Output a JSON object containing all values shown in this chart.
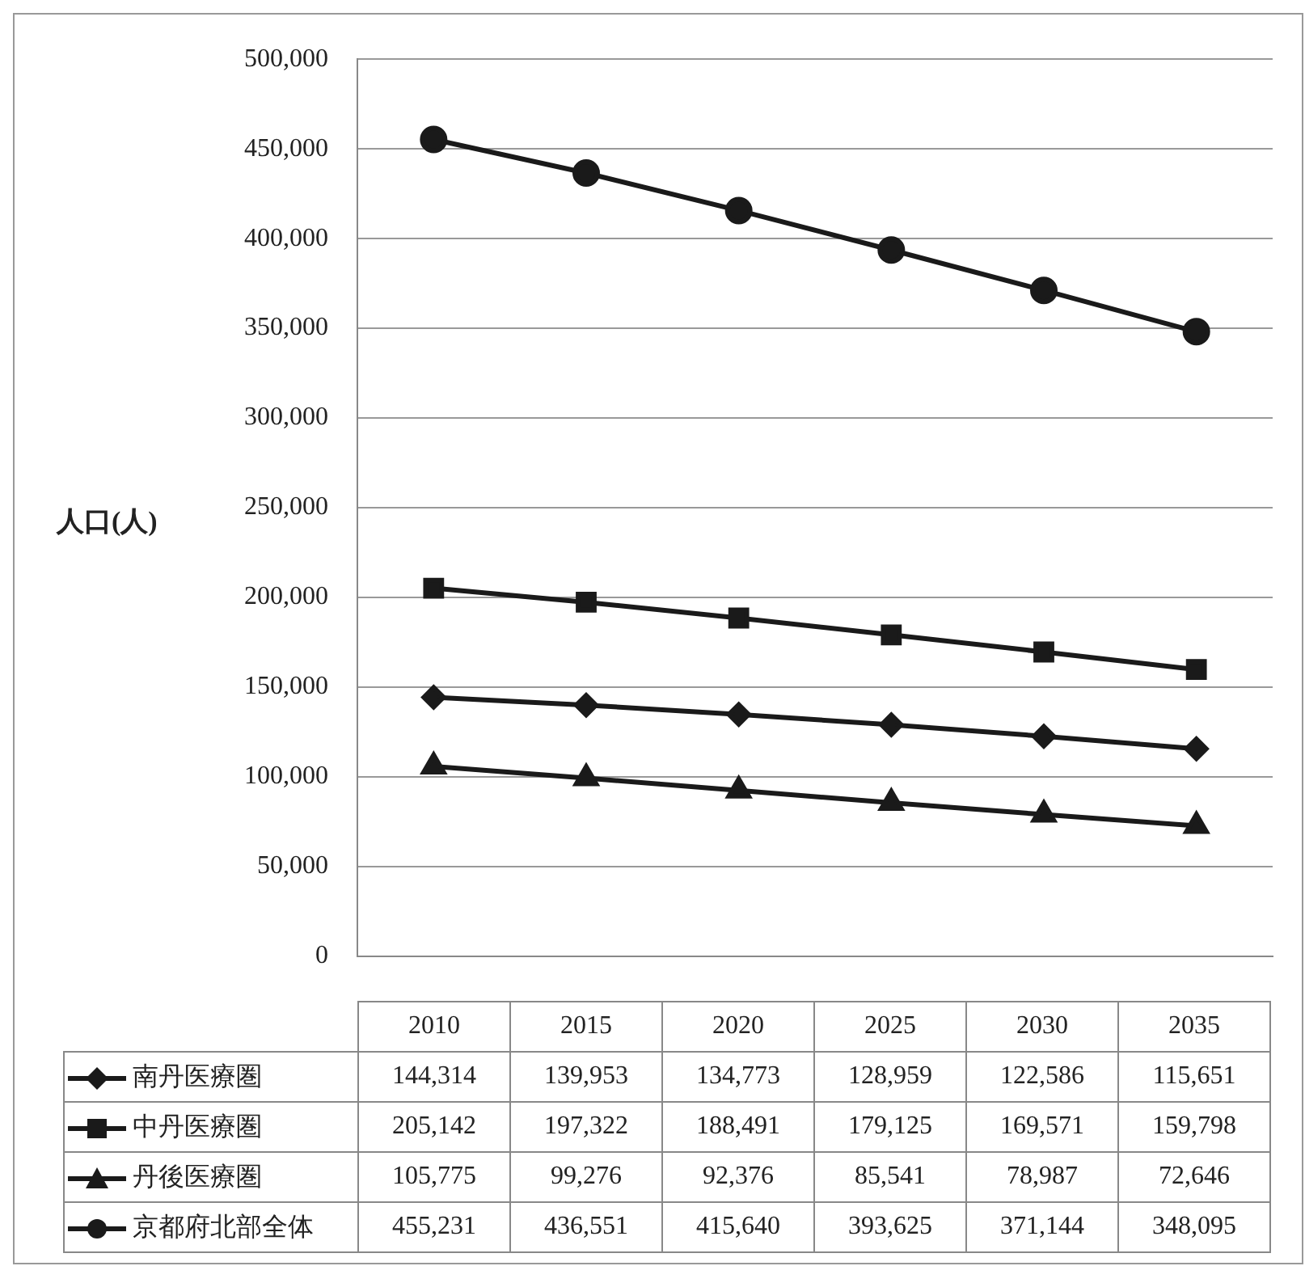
{
  "chart_data": {
    "type": "line",
    "ylabel": "人口(人)",
    "categories": [
      "2010",
      "2015",
      "2020",
      "2025",
      "2030",
      "2035"
    ],
    "series": [
      {
        "name": "南丹医療圏",
        "color": "#1a1a1a",
        "marker": "diamond",
        "values": [
          144314,
          139953,
          134773,
          128959,
          122586,
          115651
        ],
        "value_labels": [
          "144,314",
          "139,953",
          "134,773",
          "128,959",
          "122,586",
          "115,651"
        ]
      },
      {
        "name": "中丹医療圏",
        "color": "#1a1a1a",
        "marker": "square",
        "values": [
          205142,
          197322,
          188491,
          179125,
          169571,
          159798
        ],
        "value_labels": [
          "205,142",
          "197,322",
          "188,491",
          "179,125",
          "169,571",
          "159,798"
        ]
      },
      {
        "name": "丹後医療圏",
        "color": "#1a1a1a",
        "marker": "triangle",
        "values": [
          105775,
          99276,
          92376,
          85541,
          78987,
          72646
        ],
        "value_labels": [
          "105,775",
          "99,276",
          "92,376",
          "85,541",
          "78,987",
          "72,646"
        ]
      },
      {
        "name": "京都府北部全体",
        "color": "#1a1a1a",
        "marker": "circle",
        "values": [
          455231,
          436551,
          415640,
          393625,
          371144,
          348095
        ],
        "value_labels": [
          "455,231",
          "436,551",
          "415,640",
          "393,625",
          "371,144",
          "348,095"
        ]
      }
    ],
    "ylim": [
      0,
      500000
    ],
    "yticks": [
      0,
      {
        "value": 50000,
        "label": "50,000"
      },
      {
        "value": 100000,
        "label": "100,000"
      },
      {
        "value": 150000,
        "label": "150,000"
      },
      {
        "value": 200000,
        "label": "200,000"
      },
      {
        "value": 250000,
        "label": "250,000"
      },
      {
        "value": 300000,
        "label": "300,000"
      },
      {
        "value": 350000,
        "label": "350,000"
      },
      {
        "value": 400000,
        "label": "400,000"
      },
      {
        "value": 450000,
        "label": "450,000"
      },
      {
        "value": 500000,
        "label": "500,000"
      }
    ],
    "grid": "y",
    "legend": "bottom",
    "line_style": "solid"
  }
}
